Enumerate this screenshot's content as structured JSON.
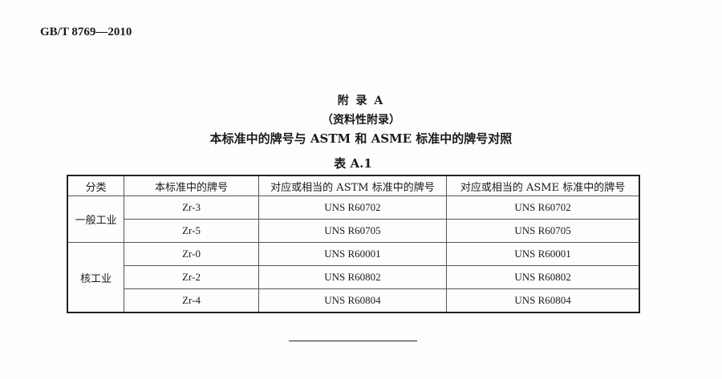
{
  "header": {
    "standard_code": "GB/T 8769—2010"
  },
  "titles": {
    "appendix": "附 录 A",
    "appendix_type": "（资料性附录）",
    "main_title": "本标准中的牌号与 ASTM 和 ASME 标准中的牌号对照",
    "table_caption": "表 A.1"
  },
  "table": {
    "columns": [
      "分类",
      "本标准中的牌号",
      "对应或相当的 ASTM 标准中的牌号",
      "对应或相当的 ASME 标准中的牌号"
    ],
    "groups": [
      {
        "category": "一般工业",
        "rows": [
          {
            "grade": "Zr-3",
            "astm": "UNS R60702",
            "asme": "UNS R60702"
          },
          {
            "grade": "Zr-5",
            "astm": "UNS R60705",
            "asme": "UNS R60705"
          }
        ]
      },
      {
        "category": "核工业",
        "rows": [
          {
            "grade": "Zr-0",
            "astm": "UNS R60001",
            "asme": "UNS R60001"
          },
          {
            "grade": "Zr-2",
            "astm": "UNS R60802",
            "asme": "UNS R60802"
          },
          {
            "grade": "Zr-4",
            "astm": "UNS R60804",
            "asme": "UNS R60804"
          }
        ]
      }
    ]
  }
}
